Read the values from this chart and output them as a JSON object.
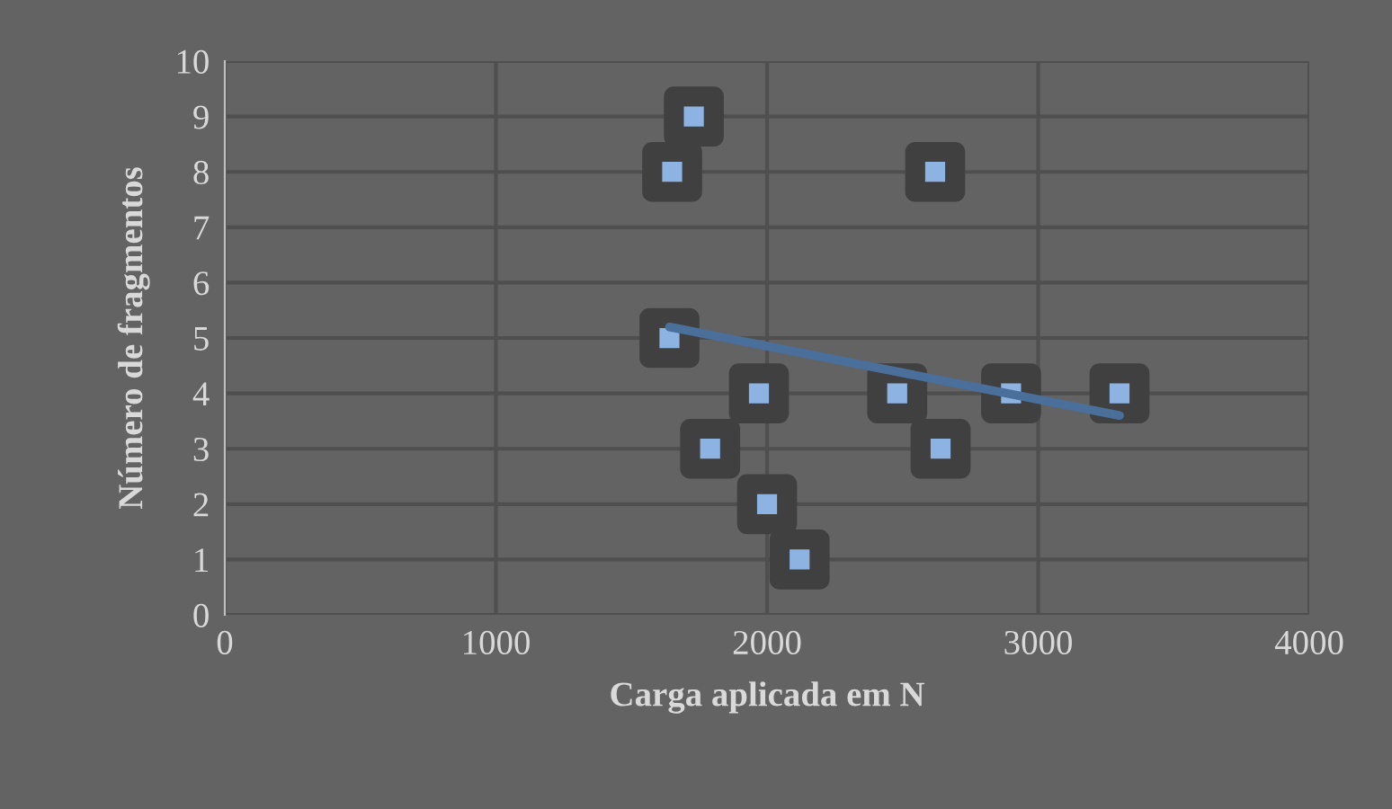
{
  "chart_data": {
    "type": "scatter",
    "xlabel": "Carga aplicada em N",
    "ylabel": "Número de fragmentos",
    "series": [
      {
        "marker": "square",
        "color": "#8db3e2",
        "x": [
          1730,
          1650,
          1640,
          1970,
          1790,
          2000,
          2120,
          2620,
          2480,
          2900,
          3300,
          2640
        ],
        "values": [
          9,
          8,
          5,
          4,
          3,
          2,
          1,
          8,
          4,
          4,
          4,
          3
        ]
      },
      {
        "type": "line",
        "color": "#4a6f9a",
        "x": [
          1640,
          3300
        ],
        "values": [
          5.2,
          3.6
        ]
      }
    ],
    "xlim": [
      0,
      4000
    ],
    "xticks": [
      0,
      1000,
      2000,
      3000,
      4000
    ],
    "ylim": [
      0,
      10
    ],
    "yticks": [
      0,
      1,
      2,
      3,
      4,
      5,
      6,
      7,
      8,
      9,
      10
    ],
    "grid": true,
    "legend": false
  }
}
